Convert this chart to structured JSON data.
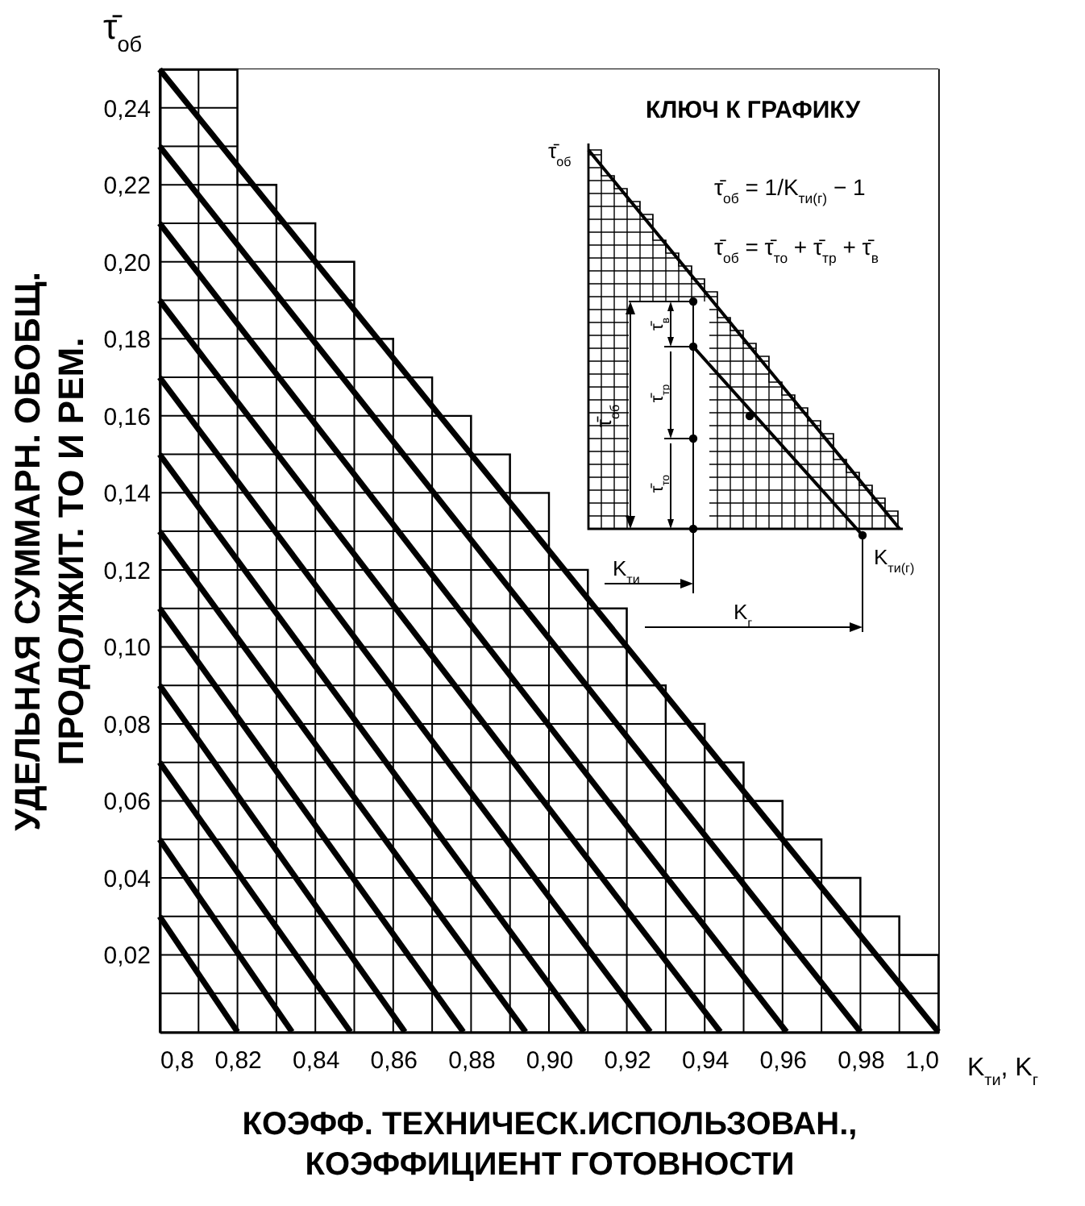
{
  "chart_data": {
    "type": "line",
    "xlabel": "КОЭФФ. ТЕХНИЧЕСК.ИСПОЛЬЗОВАН.,\nКОЭФФИЦИЕНТ ГОТОВНОСТИ",
    "ylabel": "УДЕЛЬНАЯ СУММАРН. ОБОБЩ.\nПРОДОЛЖИТ. ТО И РЕМ.",
    "annotations": [
      "τ̄$_{об}$",
      "K$_{ти}$, K$_{г}$",
      "КЛЮЧ К ГРАФИКУ",
      "τ̄$_{об}$",
      "τ̄$_{об}$ = 1/K$_{ти(г)}$ − 1",
      "τ̄$_{об}$ = τ̄$_{то}$ + τ̄$_{тр}$ + τ̄$_{в}$",
      "τ̄$_{об}$",
      "τ̄$_{в}$",
      "τ̄$_{тр}$",
      "τ̄$_{то}$",
      "K$_{ти}$",
      "K$_{г}$",
      "K$_{ти(г)}$"
    ],
    "xlim": [
      0.8,
      1.0
    ],
    "ylim": [
      0,
      0.25
    ],
    "xticks": [
      {
        "value": 0.8,
        "label": "0,8"
      },
      {
        "value": 0.81,
        "label": null
      },
      {
        "value": 0.82,
        "label": "0,82"
      },
      {
        "value": 0.83,
        "label": null
      },
      {
        "value": 0.84,
        "label": "0,84"
      },
      {
        "value": 0.85,
        "label": null
      },
      {
        "value": 0.86,
        "label": "0,86"
      },
      {
        "value": 0.87,
        "label": null
      },
      {
        "value": 0.88,
        "label": "0,88"
      },
      {
        "value": 0.89,
        "label": null
      },
      {
        "value": 0.9,
        "label": "0,90"
      },
      {
        "value": 0.91,
        "label": null
      },
      {
        "value": 0.92,
        "label": "0,92"
      },
      {
        "value": 0.93,
        "label": null
      },
      {
        "value": 0.94,
        "label": "0,94"
      },
      {
        "value": 0.95,
        "label": null
      },
      {
        "value": 0.96,
        "label": "0,96"
      },
      {
        "value": 0.97,
        "label": null
      },
      {
        "value": 0.98,
        "label": "0,98"
      },
      {
        "value": 0.99,
        "label": null
      },
      {
        "value": 1.0,
        "label": "1,0"
      }
    ],
    "yticks": [
      {
        "value": 0.01,
        "label": null
      },
      {
        "value": 0.02,
        "label": "0,02"
      },
      {
        "value": 0.03,
        "label": null
      },
      {
        "value": 0.04,
        "label": "0,04"
      },
      {
        "value": 0.05,
        "label": null
      },
      {
        "value": 0.06,
        "label": "0,06"
      },
      {
        "value": 0.07,
        "label": null
      },
      {
        "value": 0.08,
        "label": "0,08"
      },
      {
        "value": 0.09,
        "label": null
      },
      {
        "value": 0.1,
        "label": "0,10"
      },
      {
        "value": 0.11,
        "label": null
      },
      {
        "value": 0.12,
        "label": "0,12"
      },
      {
        "value": 0.13,
        "label": null
      },
      {
        "value": 0.14,
        "label": "0,14"
      },
      {
        "value": 0.15,
        "label": null
      },
      {
        "value": 0.16,
        "label": "0,16"
      },
      {
        "value": 0.17,
        "label": null
      },
      {
        "value": 0.18,
        "label": "0,18"
      },
      {
        "value": 0.19,
        "label": null
      },
      {
        "value": 0.2,
        "label": "0,20"
      },
      {
        "value": 0.21,
        "label": null
      },
      {
        "value": 0.22,
        "label": "0,22"
      },
      {
        "value": 0.23,
        "label": null
      },
      {
        "value": 0.24,
        "label": "0,24"
      },
      {
        "value": 0.25,
        "label": null
      }
    ],
    "grid": true,
    "series": [
      {
        "type": "step",
        "color": "#000000",
        "x": [
          0.8,
          0.81,
          0.82,
          0.83,
          0.84,
          0.85,
          0.86,
          0.87,
          0.88,
          0.89,
          0.9,
          0.91,
          0.92,
          0.93,
          0.94,
          0.95,
          0.96,
          0.97,
          0.98,
          0.99,
          1.0
        ],
        "values": [
          0.25,
          0.25,
          0.22,
          0.21,
          0.2,
          0.18,
          0.17,
          0.16,
          0.15,
          0.14,
          0.12,
          0.11,
          0.09,
          0.08,
          0.07,
          0.06,
          0.05,
          0.04,
          0.03,
          0.02,
          0.02
        ]
      },
      {
        "color": "#000000",
        "x": [
          0.8,
          0.82
        ],
        "values": [
          0.03,
          0
        ]
      },
      {
        "color": "#000000",
        "x": [
          0.8,
          0.834
        ],
        "values": [
          0.05,
          0
        ]
      },
      {
        "color": "#000000",
        "x": [
          0.8,
          0.849
        ],
        "values": [
          0.07,
          0
        ]
      },
      {
        "color": "#000000",
        "x": [
          0.8,
          0.863
        ],
        "values": [
          0.09,
          0
        ]
      },
      {
        "color": "#000000",
        "x": [
          0.8,
          0.878
        ],
        "values": [
          0.11,
          0
        ]
      },
      {
        "color": "#000000",
        "x": [
          0.8,
          0.894
        ],
        "values": [
          0.13,
          0
        ]
      },
      {
        "color": "#000000",
        "x": [
          0.8,
          0.909
        ],
        "values": [
          0.15,
          0
        ]
      },
      {
        "color": "#000000",
        "x": [
          0.8,
          0.926
        ],
        "values": [
          0.17,
          0
        ]
      },
      {
        "color": "#000000",
        "x": [
          0.8,
          0.944
        ],
        "values": [
          0.19,
          0
        ]
      },
      {
        "color": "#000000",
        "x": [
          0.8,
          0.961
        ],
        "values": [
          0.21,
          0
        ]
      },
      {
        "color": "#000000",
        "x": [
          0.8,
          0.98
        ],
        "values": [
          0.23,
          0
        ]
      },
      {
        "color": "#000000",
        "x": [
          0.8,
          1.0
        ],
        "values": [
          0.25,
          0
        ]
      }
    ]
  }
}
